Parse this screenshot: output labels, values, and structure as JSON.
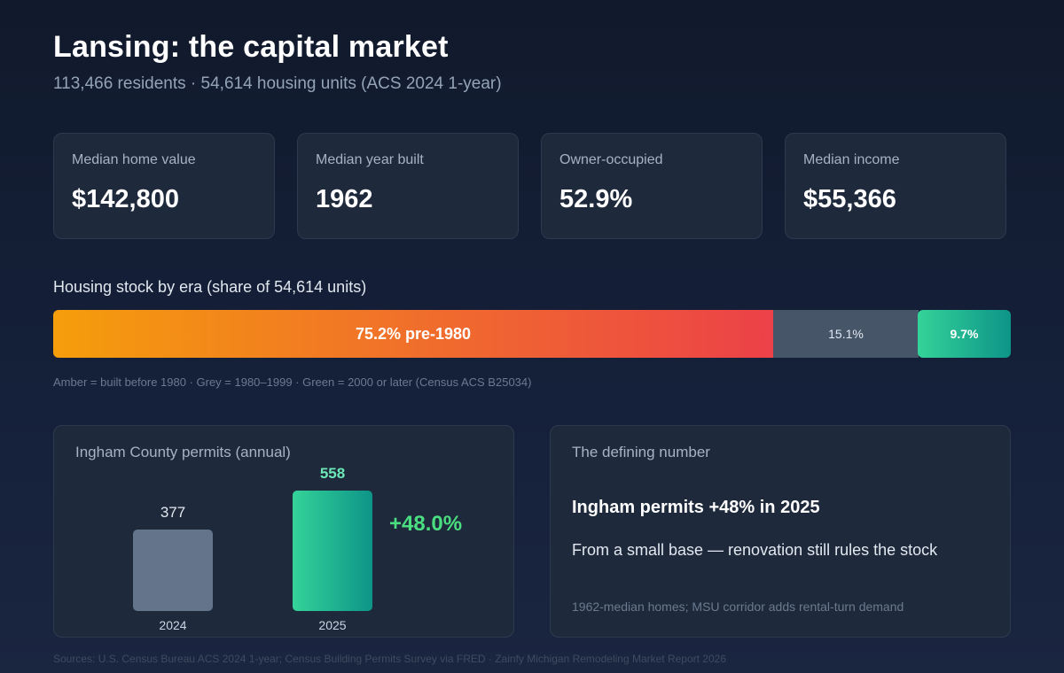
{
  "header": {
    "title": "Lansing: the capital market",
    "subtitle": "113,466 residents · 54,614 housing units (ACS 2024 1-year)"
  },
  "kpis": [
    {
      "label": "Median home value",
      "value": "$142,800"
    },
    {
      "label": "Median year built",
      "value": "1962"
    },
    {
      "label": "Owner-occupied",
      "value": "52.9%"
    },
    {
      "label": "Median income",
      "value": "$55,366"
    }
  ],
  "housing_stock": {
    "label": "Housing stock by era (share of 54,614 units)",
    "segments": [
      {
        "text": "75.2% pre-1980",
        "share": 75.2,
        "color": "#f59e0b"
      },
      {
        "text": "15.1%",
        "share": 15.1,
        "color": "#475569"
      },
      {
        "text": "9.7%",
        "share": 9.7,
        "color": "#34d399"
      }
    ],
    "note": "Amber = built before 1980 · Grey = 1980–1999 · Green = 2000 or later (Census ACS B25034)"
  },
  "permits_panel": {
    "title": "Ingham County permits (annual)",
    "growth": "+48.0%"
  },
  "defining_panel": {
    "title": "The defining number",
    "headline": "Ingham permits +48% in 2025",
    "body": "From a small base — renovation still rules the stock",
    "footnote": "1962-median homes; MSU corridor adds rental-turn demand"
  },
  "sources": "Sources: U.S. Census Bureau ACS 2024 1-year; Census Building Permits Survey via FRED · Zainfy Michigan Remodeling Market Report 2026",
  "colors": {
    "accent_green": "#4ade80",
    "teal": "#34d399",
    "amber": "#f59e0b",
    "red": "#ec4148",
    "grey": "#475569",
    "bar_2024": "#64748b"
  },
  "chart_data": [
    {
      "type": "bar",
      "orientation": "horizontal-stacked",
      "title": "Housing stock by era (share of 54,614 units)",
      "categories": [
        "pre-1980",
        "1980–1999",
        "2000 or later"
      ],
      "values": [
        75.2,
        15.1,
        9.7
      ],
      "unit": "%"
    },
    {
      "type": "bar",
      "title": "Ingham County permits (annual)",
      "categories": [
        "2024",
        "2025"
      ],
      "values": [
        377,
        558
      ],
      "ylim": [
        0,
        558
      ]
    }
  ]
}
